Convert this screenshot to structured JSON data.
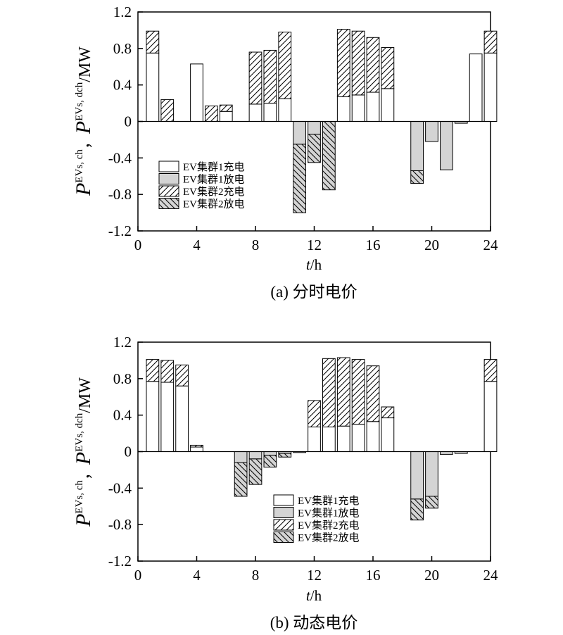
{
  "chart_data": [
    {
      "type": "bar",
      "stacked": true,
      "caption": "(a) 分时电价",
      "xlabel_var": "t",
      "xlabel_unit": "/h",
      "ylabel": {
        "sym": "P",
        "sup1": "EVs, ch",
        "sep": "，",
        "sup2": "EVs, dch",
        "unit": "/MW"
      },
      "xlim": [
        0,
        24
      ],
      "ylim": [
        -1.2,
        1.2
      ],
      "xticks": [
        0,
        4,
        8,
        12,
        16,
        20,
        24
      ],
      "yticks": [
        -1.2,
        -0.8,
        -0.4,
        0,
        0.4,
        0.8,
        1.2
      ],
      "ytick_labels": [
        "-1.2",
        "-0.8",
        "-0.4",
        "0",
        "0.4",
        "0.8",
        "1.2"
      ],
      "legend": {
        "position": "lower-left",
        "entries": [
          "EV集群1充电",
          "EV集群1放电",
          "EV集群2充电",
          "EV集群2放电"
        ]
      },
      "x": [
        1,
        2,
        3,
        4,
        5,
        6,
        7,
        8,
        9,
        10,
        11,
        12,
        13,
        14,
        15,
        16,
        17,
        18,
        19,
        20,
        21,
        22,
        23,
        24
      ],
      "series": [
        {
          "name": "EV集群1充电",
          "pattern": "white",
          "values": [
            0.75,
            0,
            0,
            0.63,
            0,
            0.11,
            0,
            0.19,
            0.2,
            0.25,
            0,
            0,
            0,
            0.27,
            0.29,
            0.32,
            0.36,
            0,
            0,
            0,
            0,
            0,
            0.74,
            0.75
          ]
        },
        {
          "name": "EV集群2充电",
          "pattern": "hatch-back",
          "values": [
            0.24,
            0.24,
            0,
            0,
            0.17,
            0.07,
            0,
            0.57,
            0.58,
            0.73,
            0,
            0,
            0,
            0.74,
            0.7,
            0.6,
            0.45,
            0,
            0,
            0,
            0,
            0,
            0,
            0.24
          ]
        },
        {
          "name": "EV集群1放电",
          "pattern": "gray",
          "values": [
            0,
            0,
            0,
            0,
            0,
            0,
            0,
            0,
            0,
            0,
            -0.25,
            -0.14,
            0,
            0,
            0,
            0,
            0,
            0,
            -0.54,
            -0.22,
            -0.53,
            -0.02,
            0,
            0
          ]
        },
        {
          "name": "EV集群2放电",
          "pattern": "gray-hatch",
          "values": [
            0,
            0,
            0,
            0,
            0,
            0,
            0,
            0,
            0,
            0,
            -0.75,
            -0.31,
            -0.75,
            0,
            0,
            0,
            0,
            0,
            -0.14,
            0,
            0,
            0,
            0,
            0
          ]
        }
      ]
    },
    {
      "type": "bar",
      "stacked": true,
      "caption": "(b) 动态电价",
      "xlabel_var": "t",
      "xlabel_unit": "/h",
      "ylabel": {
        "sym": "P",
        "sup1": "EVs, ch",
        "sep": "，",
        "sup2": "EVs, dch",
        "unit": "/MW"
      },
      "xlim": [
        0,
        24
      ],
      "ylim": [
        -1.2,
        1.2
      ],
      "xticks": [
        0,
        4,
        8,
        12,
        16,
        20,
        24
      ],
      "yticks": [
        -1.2,
        -0.8,
        -0.4,
        0,
        0.4,
        0.8,
        1.2
      ],
      "ytick_labels": [
        "-1.2",
        "-0.8",
        "-0.4",
        "0",
        "0.4",
        "0.8",
        "1.2"
      ],
      "legend": {
        "position": "lower-center",
        "entries": [
          "EV集群1充电",
          "EV集群1放电",
          "EV集群2充电",
          "EV集群2放电"
        ]
      },
      "x": [
        1,
        2,
        3,
        4,
        5,
        6,
        7,
        8,
        9,
        10,
        11,
        12,
        13,
        14,
        15,
        16,
        17,
        18,
        19,
        20,
        21,
        22,
        23,
        24
      ],
      "series": [
        {
          "name": "EV集群1充电",
          "pattern": "white",
          "values": [
            0.77,
            0.76,
            0.72,
            0.05,
            0,
            0,
            0,
            0,
            0,
            0,
            0,
            0.27,
            0.27,
            0.28,
            0.3,
            0.33,
            0.37,
            0,
            0,
            0,
            0,
            0,
            0,
            0.77
          ]
        },
        {
          "name": "EV集群2充电",
          "pattern": "hatch-back",
          "values": [
            0.24,
            0.24,
            0.23,
            0.02,
            0,
            0,
            0,
            0,
            0,
            0,
            0,
            0.29,
            0.75,
            0.75,
            0.71,
            0.61,
            0.12,
            0,
            0,
            0,
            0,
            0,
            0,
            0.24
          ]
        },
        {
          "name": "EV集群1放电",
          "pattern": "gray",
          "values": [
            0,
            0,
            0,
            0,
            0,
            0,
            -0.12,
            -0.08,
            -0.04,
            -0.02,
            -0.01,
            0,
            0,
            0,
            0,
            0,
            0,
            0,
            -0.52,
            -0.49,
            -0.03,
            -0.02,
            0,
            0
          ]
        },
        {
          "name": "EV集群2放电",
          "pattern": "gray-hatch",
          "values": [
            0,
            0,
            0,
            0,
            0,
            0,
            -0.37,
            -0.28,
            -0.13,
            -0.04,
            0,
            0,
            0,
            0,
            0,
            0,
            0,
            0,
            -0.23,
            -0.13,
            0,
            0,
            0,
            0
          ]
        }
      ]
    }
  ]
}
